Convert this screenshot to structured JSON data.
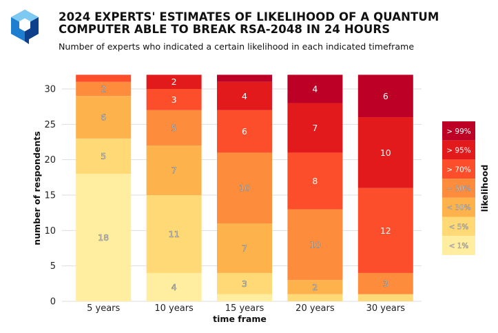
{
  "header": {
    "title": "2024 EXPERTS' ESTIMATES OF LIKELIHOOD OF A QUANTUM\nCOMPUTER ABLE TO BREAK RSA-2048 IN 24 HOURS",
    "subtitle": "Number of experts who indicated a certain likelihood in each indicated timeframe",
    "logo_icon": "cube-logo-icon"
  },
  "chart_data": {
    "type": "bar",
    "stacked": true,
    "title": "2024 EXPERTS' ESTIMATES OF LIKELIHOOD OF A QUANTUM COMPUTER ABLE TO BREAK RSA-2048 IN 24 HOURS",
    "subtitle": "Number of experts who indicated a certain likelihood in each indicated timeframe",
    "xlabel": "time frame",
    "ylabel": "number of respondents",
    "categories": [
      "5 years",
      "10 years",
      "15 years",
      "20 years",
      "30 years"
    ],
    "ylim": [
      0,
      32
    ],
    "yticks": [
      0,
      5,
      10,
      15,
      20,
      25,
      30
    ],
    "grid": true,
    "legend_title": "likelihood",
    "legend_position": "right",
    "series": [
      {
        "name": "< 1%",
        "color": "#ffeda0",
        "values": [
          18,
          4,
          1,
          0,
          0
        ]
      },
      {
        "name": "< 5%",
        "color": "#fed976",
        "values": [
          5,
          11,
          3,
          1,
          1
        ]
      },
      {
        "name": "< 30%",
        "color": "#feb24c",
        "values": [
          6,
          7,
          7,
          2,
          0
        ]
      },
      {
        "name": "~ 50%",
        "color": "#fd8d3c",
        "values": [
          2,
          5,
          10,
          10,
          3
        ]
      },
      {
        "name": "> 70%",
        "color": "#fc4e2a",
        "values": [
          1,
          3,
          6,
          8,
          12
        ]
      },
      {
        "name": "> 95%",
        "color": "#e31a1c",
        "values": [
          0,
          2,
          4,
          7,
          10
        ]
      },
      {
        "name": "> 99%",
        "color": "#bd0026",
        "values": [
          0,
          0,
          1,
          4,
          6
        ]
      }
    ],
    "min_label_value": 2
  }
}
